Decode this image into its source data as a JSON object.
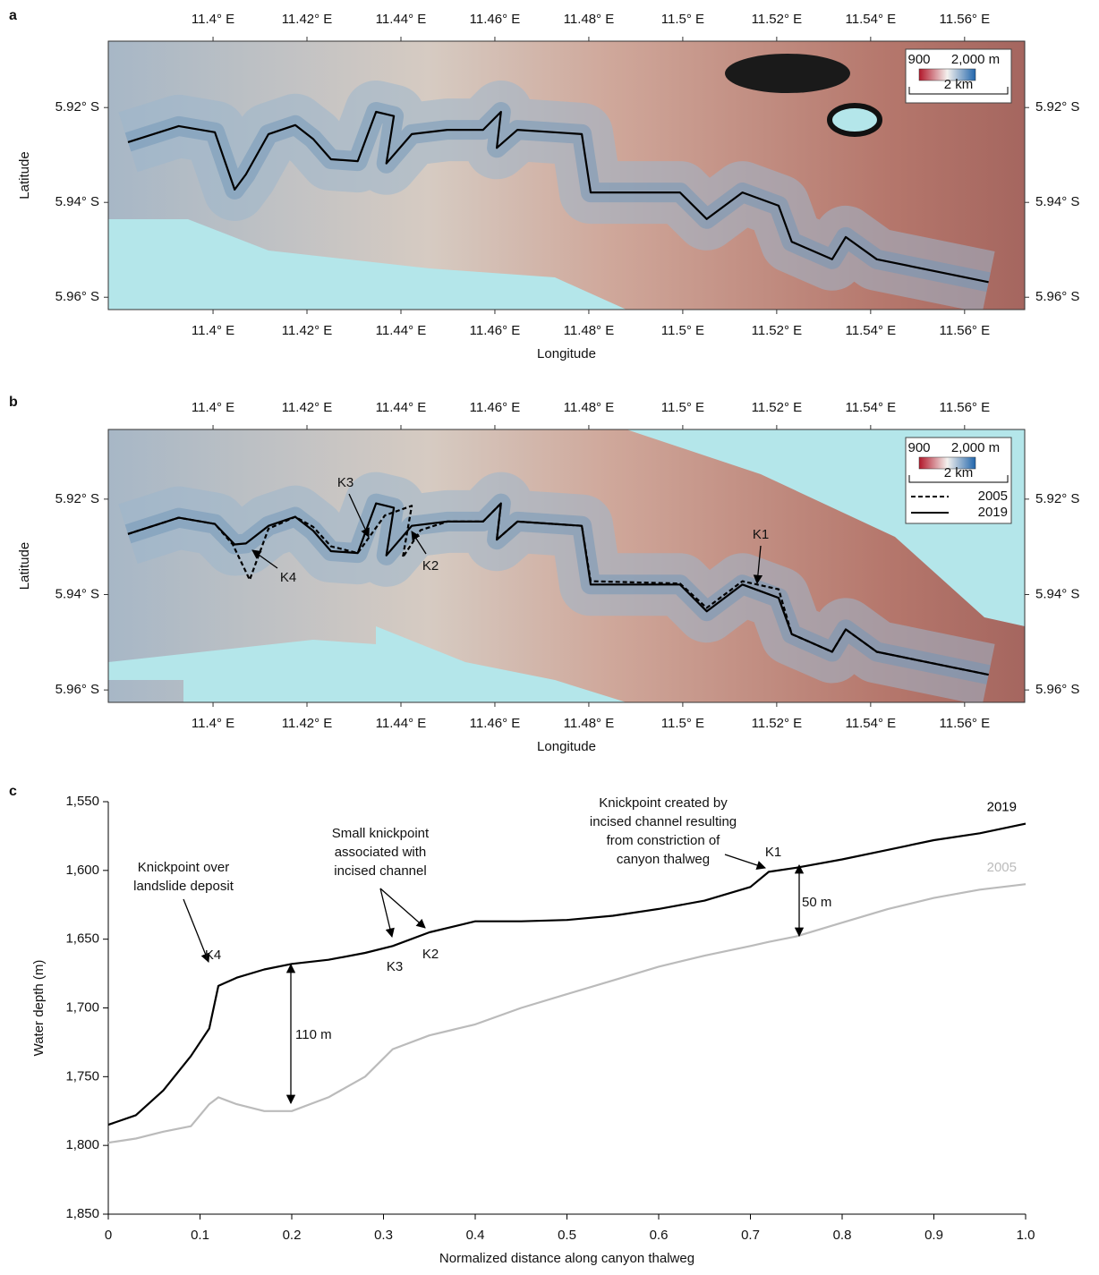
{
  "chart_data": [
    {
      "type": "map",
      "panel": "a",
      "xlabel": "Longitude",
      "ylabel": "Latitude",
      "xlim": [
        11.3777,
        11.5728
      ],
      "ylim": [
        5.9626,
        5.906
      ],
      "xticks": [
        {
          "value": 11.4,
          "label": "11.4° E"
        },
        {
          "value": 11.42,
          "label": "11.42° E"
        },
        {
          "value": 11.44,
          "label": "11.44° E"
        },
        {
          "value": 11.46,
          "label": "11.46° E"
        },
        {
          "value": 11.48,
          "label": "11.48° E"
        },
        {
          "value": 11.5,
          "label": "11.5° E"
        },
        {
          "value": 11.52,
          "label": "11.52° E"
        },
        {
          "value": 11.54,
          "label": "11.54° E"
        },
        {
          "value": 11.56,
          "label": "11.56° E"
        }
      ],
      "yticks": [
        {
          "value": 5.92,
          "label": "5.92° S"
        },
        {
          "value": 5.94,
          "label": "5.94° S"
        },
        {
          "value": 5.96,
          "label": "5.96° S"
        }
      ],
      "colorbar": {
        "colors": [
          "#b2182b",
          "#f4f1ee",
          "#2166ac"
        ],
        "ticks": [
          {
            "value": 900,
            "label": "900"
          },
          {
            "value": 2000,
            "label": "2,000 m"
          }
        ]
      },
      "scalebar": "2 km",
      "series": [
        {
          "color": "#000000",
          "dashed": false,
          "x": [
            11.3819,
            11.3927,
            11.4004,
            11.4046,
            11.407,
            11.4118,
            11.4175,
            11.4213,
            11.4251,
            11.4308,
            11.4347,
            11.4385,
            11.4369,
            11.4423,
            11.4499,
            11.4575,
            11.4613,
            11.4604,
            11.4648,
            11.4785,
            11.4804,
            11.4994,
            11.5051,
            11.5127,
            11.5204,
            11.5232,
            11.5318,
            11.5347,
            11.5413,
            11.5651
          ],
          "values": [
            5.9273,
            5.9239,
            5.9252,
            5.9373,
            5.9341,
            5.9256,
            5.9237,
            5.9266,
            5.9309,
            5.9313,
            5.9209,
            5.9218,
            5.9318,
            5.9256,
            5.9247,
            5.9247,
            5.9209,
            5.9285,
            5.9247,
            5.9256,
            5.9379,
            5.9379,
            5.9435,
            5.9379,
            5.9407,
            5.9483,
            5.952,
            5.9473,
            5.952,
            5.9568
          ]
        }
      ]
    },
    {
      "type": "map",
      "panel": "b",
      "xlabel": "Longitude",
      "ylabel": "Latitude",
      "xlim": [
        11.3777,
        11.5728
      ],
      "ylim": [
        5.9626,
        5.9054
      ],
      "xticks": [
        {
          "value": 11.4,
          "label": "11.4° E"
        },
        {
          "value": 11.42,
          "label": "11.42° E"
        },
        {
          "value": 11.44,
          "label": "11.44° E"
        },
        {
          "value": 11.46,
          "label": "11.46° E"
        },
        {
          "value": 11.48,
          "label": "11.48° E"
        },
        {
          "value": 11.5,
          "label": "11.5° E"
        },
        {
          "value": 11.52,
          "label": "11.52° E"
        },
        {
          "value": 11.54,
          "label": "11.54° E"
        },
        {
          "value": 11.56,
          "label": "11.56° E"
        }
      ],
      "yticks": [
        {
          "value": 5.92,
          "label": "5.92° S"
        },
        {
          "value": 5.94,
          "label": "5.94° S"
        },
        {
          "value": 5.96,
          "label": "5.96° S"
        }
      ],
      "colorbar": {
        "colors": [
          "#b2182b",
          "#f4f1ee",
          "#2166ac"
        ],
        "ticks": [
          {
            "value": 900,
            "label": "900"
          },
          {
            "value": 2000,
            "label": "2,000 m"
          }
        ]
      },
      "scalebar": "2 km",
      "series": [
        {
          "name": "2005",
          "color": "#000000",
          "dashed": true,
          "x": [
            11.3819,
            11.3927,
            11.4004,
            11.4042,
            11.4078,
            11.4118,
            11.4175,
            11.4213,
            11.4251,
            11.4308,
            11.4366,
            11.4423,
            11.4404,
            11.4442,
            11.4499,
            11.4575,
            11.4613,
            11.4604,
            11.4648,
            11.4785,
            11.4804,
            11.4994,
            11.5051,
            11.5127,
            11.5204,
            11.5232,
            11.5318,
            11.5347,
            11.5413,
            11.5651
          ],
          "values": [
            5.9273,
            5.9239,
            5.9252,
            5.9295,
            5.9369,
            5.9262,
            5.9237,
            5.9258,
            5.9299,
            5.9313,
            5.9234,
            5.9214,
            5.9322,
            5.9265,
            5.9247,
            5.9247,
            5.9209,
            5.9285,
            5.9247,
            5.9256,
            5.9372,
            5.9377,
            5.9428,
            5.9372,
            5.9389,
            5.9483,
            5.952,
            5.9473,
            5.952,
            5.9568
          ]
        },
        {
          "name": "2019",
          "color": "#000000",
          "dashed": false,
          "x": [
            11.3819,
            11.3927,
            11.4004,
            11.4046,
            11.407,
            11.4118,
            11.4175,
            11.4213,
            11.4251,
            11.4308,
            11.4347,
            11.4385,
            11.4369,
            11.4423,
            11.4499,
            11.4575,
            11.4613,
            11.4604,
            11.4648,
            11.4785,
            11.4804,
            11.4994,
            11.5051,
            11.5127,
            11.5204,
            11.5232,
            11.5318,
            11.5347,
            11.5413,
            11.5651
          ],
          "values": [
            5.9273,
            5.9239,
            5.9252,
            5.9295,
            5.9293,
            5.9256,
            5.9237,
            5.9266,
            5.9309,
            5.9313,
            5.9209,
            5.9218,
            5.9318,
            5.9256,
            5.9247,
            5.9247,
            5.9209,
            5.9285,
            5.9247,
            5.9256,
            5.9379,
            5.9379,
            5.9435,
            5.9379,
            5.9407,
            5.9483,
            5.952,
            5.9473,
            5.952,
            5.9568
          ]
        }
      ],
      "annotations": [
        {
          "text": "K3"
        },
        {
          "text": "K4"
        },
        {
          "text": "K2"
        },
        {
          "text": "K1"
        }
      ]
    },
    {
      "type": "line",
      "panel": "c",
      "xlabel": "Normalized distance along canyon thalweg",
      "ylabel": "Water depth (m)",
      "xlim": [
        0,
        1
      ],
      "ylim": [
        1850,
        1550
      ],
      "xticks": [
        0,
        0.1,
        0.2,
        0.3,
        0.4,
        0.5,
        0.6,
        0.7,
        0.8,
        0.9,
        {
          "value": 1,
          "label": "1.0"
        }
      ],
      "yticks": [
        {
          "value": 1550,
          "label": "1,550"
        },
        {
          "value": 1600,
          "label": "1,600"
        },
        {
          "value": 1650,
          "label": "1,650"
        },
        {
          "value": 1700,
          "label": "1,700"
        },
        {
          "value": 1750,
          "label": "1,750"
        },
        {
          "value": 1800,
          "label": "1,800"
        },
        {
          "value": 1850,
          "label": "1,850"
        }
      ],
      "x": [
        0,
        0.03,
        0.06,
        0.09,
        0.11,
        0.12,
        0.14,
        0.17,
        0.2,
        0.24,
        0.28,
        0.31,
        0.35,
        0.4,
        0.45,
        0.5,
        0.55,
        0.6,
        0.65,
        0.7,
        0.72,
        0.75,
        0.8,
        0.85,
        0.9,
        0.95,
        1
      ],
      "series": [
        {
          "name": "2019",
          "color": "#000000",
          "values": [
            1785,
            1778,
            1760,
            1735,
            1715,
            1684,
            1678,
            1672,
            1668,
            1665,
            1660,
            1655,
            1645,
            1637,
            1637,
            1636,
            1633,
            1628,
            1622,
            1612,
            1601,
            1598,
            1592,
            1585,
            1578,
            1573,
            1566
          ]
        },
        {
          "name": "2005",
          "color": "#bbbbbb",
          "values": [
            1798,
            1795,
            1790,
            1786,
            1770,
            1765,
            1770,
            1775,
            1775,
            1765,
            1750,
            1730,
            1720,
            1712,
            1700,
            1690,
            1680,
            1670,
            1662,
            1655,
            1652,
            1648,
            1638,
            1628,
            1620,
            1614,
            1610
          ]
        }
      ],
      "annotations": [
        {
          "text": [
            "Knickpoint over",
            "landslide deposit"
          ]
        },
        {
          "text": "K4"
        },
        {
          "text": [
            "Small knickpoint",
            "associated with",
            "incised channel"
          ]
        },
        {
          "text": "K3"
        },
        {
          "text": "K2"
        },
        {
          "text": [
            "Knickpoint created by",
            "incised channel resulting",
            "from constriction of",
            "canyon thalweg"
          ]
        },
        {
          "text": "K1"
        },
        {
          "text": "110 m"
        },
        {
          "text": "50 m"
        }
      ]
    }
  ]
}
